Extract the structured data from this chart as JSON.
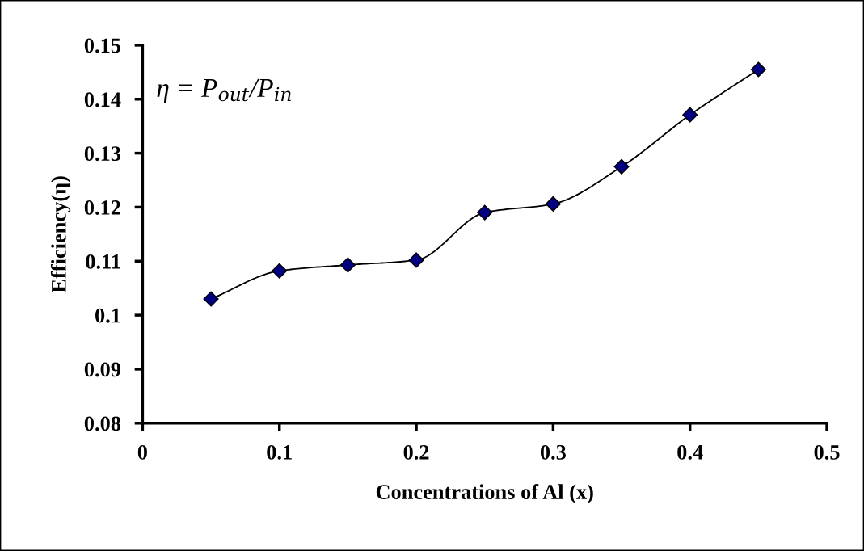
{
  "chart_data": {
    "type": "line",
    "xlabel": "Concentrations of Al (x)",
    "ylabel": "Efficiency(η)",
    "x": [
      0.05,
      0.1,
      0.15,
      0.2,
      0.25,
      0.3,
      0.35,
      0.4,
      0.45
    ],
    "series": [
      {
        "color": "#000080",
        "values": [
          0.103,
          0.1082,
          0.1093,
          0.1102,
          0.119,
          0.1206,
          0.1275,
          0.1371,
          0.1455
        ]
      }
    ],
    "xlim": [
      0,
      0.5
    ],
    "xticks": [
      0,
      0.1,
      0.2,
      0.3,
      0.4,
      0.5
    ],
    "ylim": [
      0.08,
      0.15
    ],
    "yticks": [
      0.08,
      0.09,
      0.1,
      0.11,
      0.12,
      0.13,
      0.14,
      0.15
    ],
    "marker": "diamond",
    "grid": false,
    "annotations": [
      "η = P$_{out}$/P$_{in}$"
    ]
  }
}
